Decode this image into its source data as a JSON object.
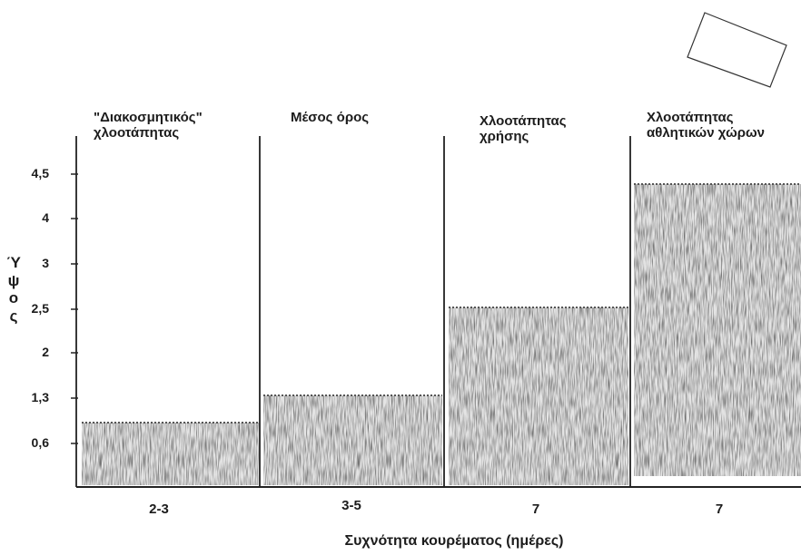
{
  "diagram": {
    "y_axis": {
      "label_chars": [
        "Ύ",
        "ψ",
        "ο",
        "ς"
      ],
      "ticks": [
        "4,5",
        "4",
        "3",
        "2,5",
        "2",
        "1,3",
        "0,6"
      ]
    },
    "columns": [
      {
        "title_lines": [
          "\"Διακοσμητικός\"",
          "χλοοτάπητας"
        ],
        "mowing_frequency": "2-3",
        "grass_height": 0.6
      },
      {
        "title_lines": [
          "Μέσος όρος"
        ],
        "mowing_frequency": "3-5",
        "grass_height": 1.3
      },
      {
        "title_lines": [
          "Χλοοτάπητας",
          "χρήσης"
        ],
        "mowing_frequency": "7",
        "grass_height": 2.5
      },
      {
        "title_lines": [
          "Χλοοτάπητας",
          "αθλητικών χώρων"
        ],
        "mowing_frequency": "7",
        "grass_height": 4.5
      }
    ],
    "x_axis_label": "Συχνότητα κουρέματος (ημέρες)"
  }
}
